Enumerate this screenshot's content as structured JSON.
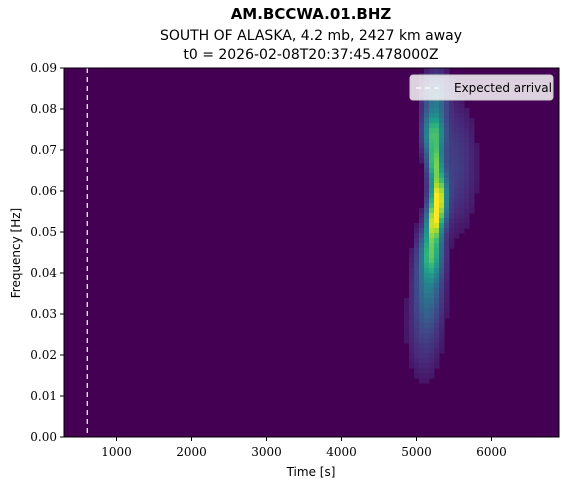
{
  "chart_data": {
    "type": "heatmap",
    "title": "AM.BCCWA.01.BHZ",
    "subtitle": "SOUTH OF ALASKA, 4.2 mb, 2427 km away",
    "subtitle2": "t0 = 2026-02-08T20:37:45.478000Z",
    "xlabel": "Time [s]",
    "ylabel": "Frequency [Hz]",
    "xlim": [
      300,
      6900
    ],
    "ylim": [
      0.0,
      0.09
    ],
    "xticks": [
      1000,
      2000,
      3000,
      4000,
      5000,
      6000
    ],
    "xtick_labels": [
      "1000",
      "2000",
      "3000",
      "4000",
      "5000",
      "6000"
    ],
    "yticks": [
      0.0,
      0.01,
      0.02,
      0.03,
      0.04,
      0.05,
      0.06,
      0.07,
      0.08,
      0.09
    ],
    "ytick_labels": [
      "0.00",
      "0.01",
      "0.02",
      "0.03",
      "0.04",
      "0.05",
      "0.06",
      "0.07",
      "0.08",
      "0.09"
    ],
    "colormap": "viridis",
    "expected_arrival": 610,
    "legend": {
      "label": "Expected arrival",
      "placement": "top-right"
    },
    "energy_blobs": [
      {
        "t": 5290,
        "f": 0.058,
        "st": 70,
        "sf": 0.0045,
        "amp": 1.0
      },
      {
        "t": 5220,
        "f": 0.052,
        "st": 60,
        "sf": 0.003,
        "amp": 0.6
      },
      {
        "t": 5240,
        "f": 0.067,
        "st": 60,
        "sf": 0.003,
        "amp": 0.55
      },
      {
        "t": 5230,
        "f": 0.074,
        "st": 90,
        "sf": 0.0035,
        "amp": 0.6
      },
      {
        "t": 5200,
        "f": 0.045,
        "st": 90,
        "sf": 0.004,
        "amp": 0.5
      },
      {
        "t": 5160,
        "f": 0.038,
        "st": 120,
        "sf": 0.007,
        "amp": 0.28
      },
      {
        "t": 5100,
        "f": 0.026,
        "st": 150,
        "sf": 0.008,
        "amp": 0.1
      },
      {
        "t": 5250,
        "f": 0.083,
        "st": 110,
        "sf": 0.004,
        "amp": 0.28
      },
      {
        "t": 5520,
        "f": 0.066,
        "st": 180,
        "sf": 0.01,
        "amp": 0.12
      }
    ]
  },
  "colors": {
    "background_low": "#440154",
    "arrival_line": "#ffffff"
  }
}
